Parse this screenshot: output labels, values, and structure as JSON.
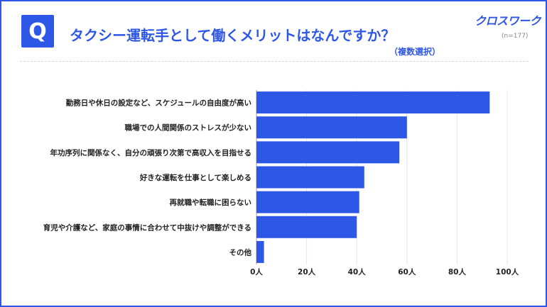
{
  "header": {
    "badge": "Q",
    "question": "タクシー運転手として働くメリットはなんですか？",
    "note": "（複数選択）",
    "brand": "クロスワーク",
    "sample_size": "(n=177)"
  },
  "colors": {
    "accent": "#2f57e6",
    "bar": "#2f57e6"
  },
  "chart_data": {
    "type": "bar",
    "orientation": "horizontal",
    "categories": [
      "勤務日や休日の設定など、スケジュールの自由度が高い",
      "職場での人間関係のストレスが少ない",
      "年功序列に関係なく、自分の頑張り次第で高収入を目指せる",
      "好きな運転を仕事として楽しめる",
      "再就職や転職に困らない",
      "育児や介護など、家庭の事情に合わせて中抜けや調整ができる",
      "その他"
    ],
    "values": [
      93,
      60,
      57,
      43,
      41,
      40,
      3
    ],
    "xlim": [
      0,
      100
    ],
    "xticks": [
      0,
      20,
      40,
      60,
      80,
      100
    ],
    "tick_labels": [
      "0人",
      "20人",
      "40人",
      "60人",
      "80人",
      "100人"
    ],
    "grid": true
  }
}
